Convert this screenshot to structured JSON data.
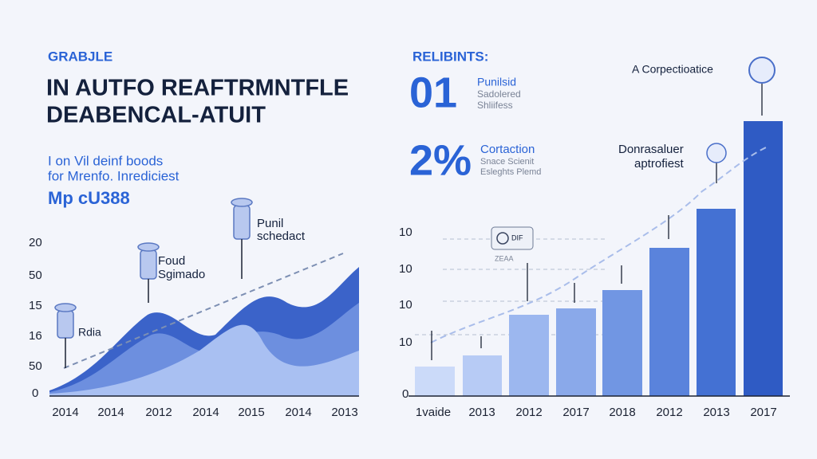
{
  "header": {
    "kicker": "GRABJLE",
    "title_lines": [
      "IN AUTFO REAFTRMNTFLE",
      "DEABENCAL-ATUIT"
    ],
    "subtitle_lines": [
      "I on Vil deinf boods",
      "for Mrenfo. Inrediciest"
    ],
    "figure": "Mp cU388"
  },
  "left_chart": {
    "y_labels": [
      "20",
      "50",
      "15",
      "16",
      "50",
      "0"
    ],
    "x_labels": [
      "2014",
      "2014",
      "2012",
      "2014",
      "2015",
      "2014",
      "2013"
    ],
    "annotations": [
      [
        "Rdia"
      ],
      [
        "Foud",
        "Sgimado"
      ],
      [
        "Punil",
        "schedact"
      ]
    ]
  },
  "right_panel": {
    "kicker": "RELIBINTS:",
    "stats": [
      {
        "big": "01",
        "lines": [
          "Punilsid",
          "Sadolered",
          "Shliifess"
        ]
      },
      {
        "big": "2%",
        "lines": [
          "Cortaction",
          "Snace Scienit",
          "Esleghts Plemd"
        ]
      }
    ],
    "callouts": [
      [
        "A Corpectioatice"
      ],
      [
        "Donrasaluer",
        "aptrofiest"
      ]
    ],
    "chip": "DIF",
    "chip_note": "ZEAA",
    "y_labels": [
      "10",
      "10",
      "10",
      "10",
      "0"
    ],
    "x_labels": [
      "1vaide",
      "2013",
      "2012",
      "2017",
      "2018",
      "2012",
      "2013",
      "2017"
    ]
  }
}
